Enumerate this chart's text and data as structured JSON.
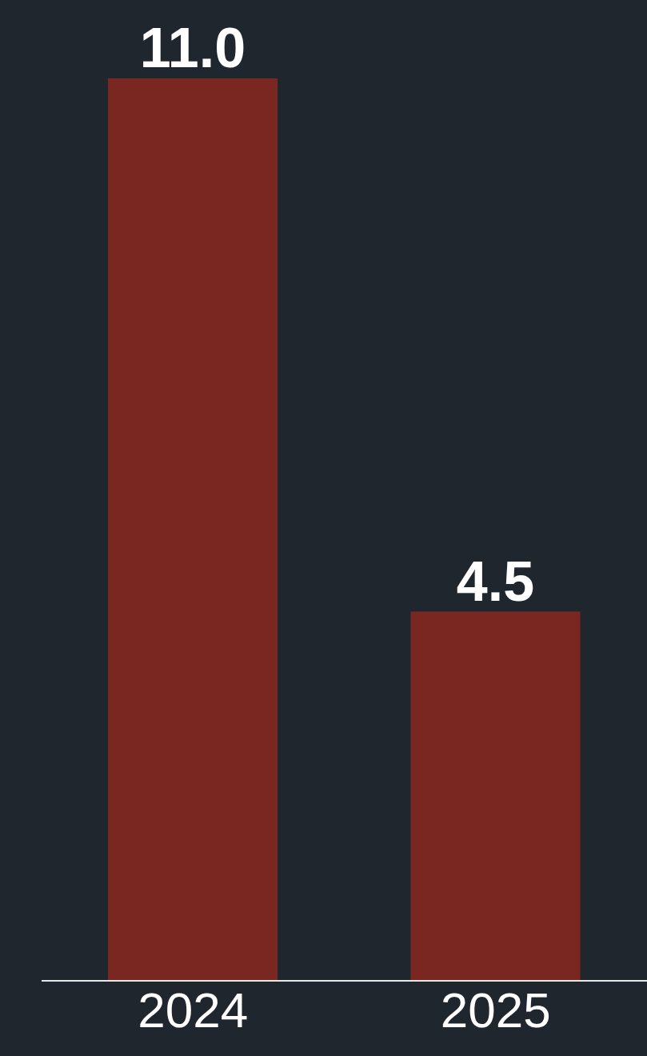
{
  "chart_data": {
    "type": "bar",
    "categories": [
      "2024",
      "2025"
    ],
    "values": [
      11.0,
      4.5
    ],
    "color": "#7a2722",
    "value_labels": [
      "11.0",
      "4.5"
    ]
  }
}
